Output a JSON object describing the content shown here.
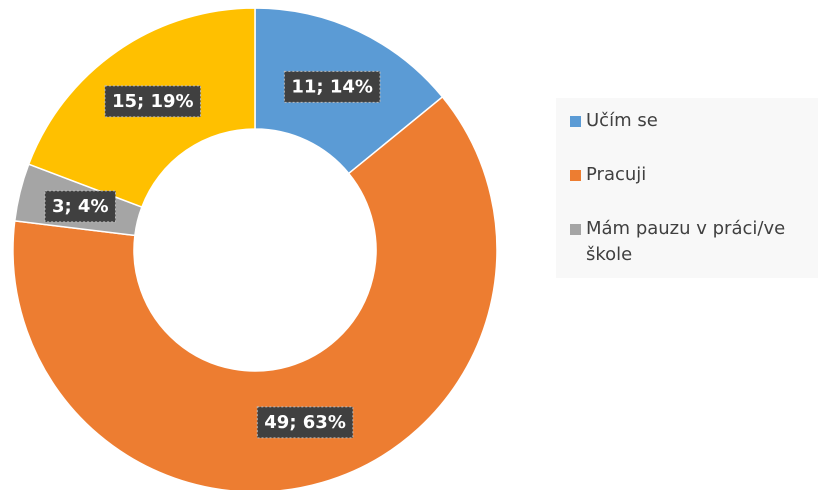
{
  "chart_data": {
    "type": "donut",
    "categories": [
      "Učím se",
      "Pracuji",
      "Mám pauzu v práci/ve škole",
      null
    ],
    "values": [
      11,
      49,
      3,
      15
    ],
    "value_labels": [
      "11; 14%",
      "49; 63%",
      "3; 4%",
      "15; 19%"
    ],
    "colors": [
      "#5b9bd5",
      "#ed7d31",
      "#a5a5a5",
      "#ffc000"
    ],
    "legend": "right"
  }
}
